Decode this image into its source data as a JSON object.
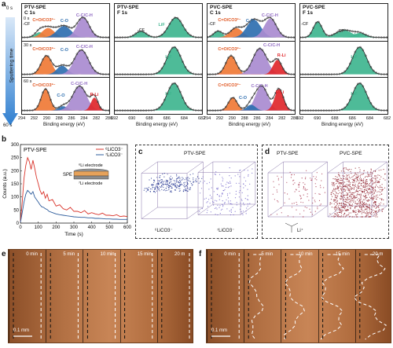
{
  "panel_labels": {
    "a": "a",
    "b": "b",
    "c": "c",
    "d": "d",
    "e": "e",
    "f": "f"
  },
  "panel_a": {
    "sputter_axis": {
      "title": "Sputtering time",
      "ticks": [
        "0 s",
        "30 s",
        "60 s"
      ],
      "top": "0 s",
      "bottom": "60 s"
    },
    "columns": [
      {
        "sample": "PTV-SPE",
        "element": "C 1s",
        "xticks": [
          "294",
          "292",
          "290",
          "288",
          "286",
          "284",
          "282",
          "280"
        ],
        "rows": [
          [
            "-CF",
            "C=O/CO3²⁻",
            "C-O",
            "C-C/C-H"
          ],
          [
            "C=O/CO3²⁻",
            "C-O",
            "C-C/C-H"
          ],
          [
            "C=O/CO3²⁻",
            "C-O",
            "C-C/C-H",
            "R-Li"
          ]
        ],
        "row_extra": [
          "0 s",
          "30 s",
          "60 s"
        ]
      },
      {
        "sample": "PTV-SPE",
        "element": "F 1s",
        "xticks": [
          "692",
          "690",
          "688",
          "686",
          "684",
          "682"
        ],
        "rows": [
          [
            "-CF",
            "LiF"
          ],
          [
            "LiF"
          ],
          [
            "LiF"
          ]
        ]
      },
      {
        "sample": "PVC-SPE",
        "element": "C 1s",
        "xticks": [
          "294",
          "292",
          "290",
          "288",
          "286",
          "284",
          "282",
          "280"
        ],
        "rows": [
          [
            "-CF",
            "C=O/CO3²⁻",
            "C-O",
            "C-C/C-H"
          ],
          [
            "C=O/CO3²⁻",
            "C-C/C-H",
            "R-Li"
          ],
          [
            "C=O/CO3²⁻",
            "C-C/C-H",
            "C-O",
            "R-Li"
          ]
        ]
      },
      {
        "sample": "PVC-SPE",
        "element": "F 1s",
        "xticks": [
          "692",
          "690",
          "688",
          "686",
          "684",
          "682"
        ],
        "rows": [
          [
            "-CF",
            "-CF",
            "LiF"
          ],
          [
            "LiF"
          ],
          [
            "LiF"
          ]
        ]
      }
    ],
    "xlabel": "Binding energy (eV)"
  },
  "panel_b": {
    "title": "PTV-SPE",
    "ylabel": "Counts (a.u.)",
    "xlabel": "Time (s)",
    "inset": {
      "top": "⁶Li electrode",
      "middle": "SPE",
      "bottom": "⁷Li electrode"
    }
  },
  "chart_data": {
    "type": "line",
    "title": "PTV-SPE",
    "xlabel": "Time (s)",
    "ylabel": "Counts (a.u.)",
    "xlim": [
      0,
      600
    ],
    "ylim": [
      0,
      300
    ],
    "xticks": [
      0,
      100,
      200,
      300,
      400,
      500,
      600
    ],
    "yticks": [
      0,
      50,
      100,
      150,
      200,
      250,
      300
    ],
    "legend": "top-right",
    "series": [
      {
        "name": "⁶LiCO3⁻",
        "color": "#d9342b",
        "x": [
          0,
          10,
          20,
          30,
          40,
          50,
          60,
          70,
          80,
          90,
          100,
          110,
          120,
          130,
          140,
          150,
          160,
          180,
          200,
          220,
          240,
          260,
          280,
          300,
          320,
          340,
          360,
          380,
          400,
          420,
          440,
          460,
          480,
          500,
          520,
          540,
          560,
          580,
          600
        ],
        "values": [
          5,
          80,
          170,
          220,
          250,
          235,
          205,
          240,
          210,
          175,
          150,
          125,
          110,
          120,
          95,
          110,
          85,
          90,
          65,
          70,
          55,
          50,
          60,
          45,
          45,
          40,
          48,
          35,
          40,
          35,
          32,
          38,
          30,
          30,
          28,
          32,
          25,
          27,
          25
        ]
      },
      {
        "name": "⁷LiCO3⁻",
        "color": "#2f5d9c",
        "x": [
          0,
          10,
          20,
          30,
          40,
          50,
          60,
          70,
          80,
          90,
          100,
          110,
          120,
          130,
          140,
          150,
          160,
          180,
          200,
          220,
          240,
          260,
          280,
          300,
          320,
          340,
          360,
          380,
          400,
          420,
          440,
          460,
          480,
          500,
          520,
          540,
          560,
          580,
          600
        ],
        "values": [
          3,
          40,
          80,
          110,
          125,
          118,
          110,
          120,
          100,
          90,
          80,
          70,
          62,
          60,
          55,
          52,
          45,
          40,
          35,
          32,
          30,
          28,
          26,
          24,
          23,
          22,
          22,
          20,
          20,
          18,
          18,
          17,
          16,
          16,
          15,
          15,
          14,
          14,
          14
        ]
      }
    ]
  },
  "panel_c": {
    "title": "PTV-SPE",
    "labels": [
      "⁶LiCO3⁻",
      "⁷LiCO3⁻"
    ]
  },
  "panel_d": {
    "titles": [
      "PTV-SPE",
      "PVC-SPE"
    ],
    "formula": "Li⁺"
  },
  "panel_e": {
    "times": [
      "0 min",
      "5 min",
      "10 min",
      "15 min",
      "20 m"
    ],
    "scale": "0.1 mm"
  },
  "panel_f": {
    "times": [
      "0 min",
      "5 min",
      "10 min",
      "15 min",
      "20 m"
    ],
    "scale": "0.1 mm"
  },
  "colors": {
    "orange": "#f07a36",
    "blue": "#2f6fb0",
    "purple": "#a98bd0",
    "green": "#3fb58f",
    "red": "#e0272b",
    "envelope": "#222222"
  }
}
